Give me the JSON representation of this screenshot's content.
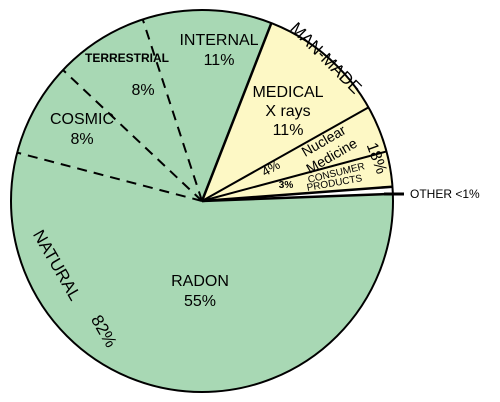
{
  "chart_data": {
    "type": "pie",
    "colors": {
      "natural": "#a8d8b4",
      "man_made": "#fdf8c5",
      "other": "#ffffff",
      "stroke": "#000000"
    },
    "slices": [
      {
        "key": "radon",
        "label": "RADON",
        "value_label": "55%",
        "value": 55,
        "group": "natural"
      },
      {
        "key": "cosmic",
        "label": "COSMIC",
        "value_label": "8%",
        "value": 8,
        "group": "natural"
      },
      {
        "key": "terrestrial",
        "label": "TERRESTRIAL",
        "value_label": "8%",
        "value": 8,
        "group": "natural"
      },
      {
        "key": "internal",
        "label": "INTERNAL",
        "value_label": "11%",
        "value": 11,
        "group": "natural"
      },
      {
        "key": "medical",
        "label": "MEDICAL",
        "label2": "X rays",
        "value_label": "11%",
        "value": 11,
        "group": "man_made"
      },
      {
        "key": "nuclear",
        "label": "Nuclear",
        "label2": "Medicine",
        "value_label": "4%",
        "value": 4,
        "group": "man_made"
      },
      {
        "key": "consumer",
        "label": "CONSUMER",
        "label2": "PRODUCTS",
        "value_label": "3%",
        "value": 3,
        "group": "man_made"
      },
      {
        "key": "other",
        "label": "OTHER <1%",
        "value": 0.6,
        "group": "other"
      }
    ],
    "groups": {
      "natural": {
        "label": "NATURAL",
        "value_label": "82%"
      },
      "man_made": {
        "label": "MAN-MADE",
        "value_label": "18%"
      }
    }
  }
}
